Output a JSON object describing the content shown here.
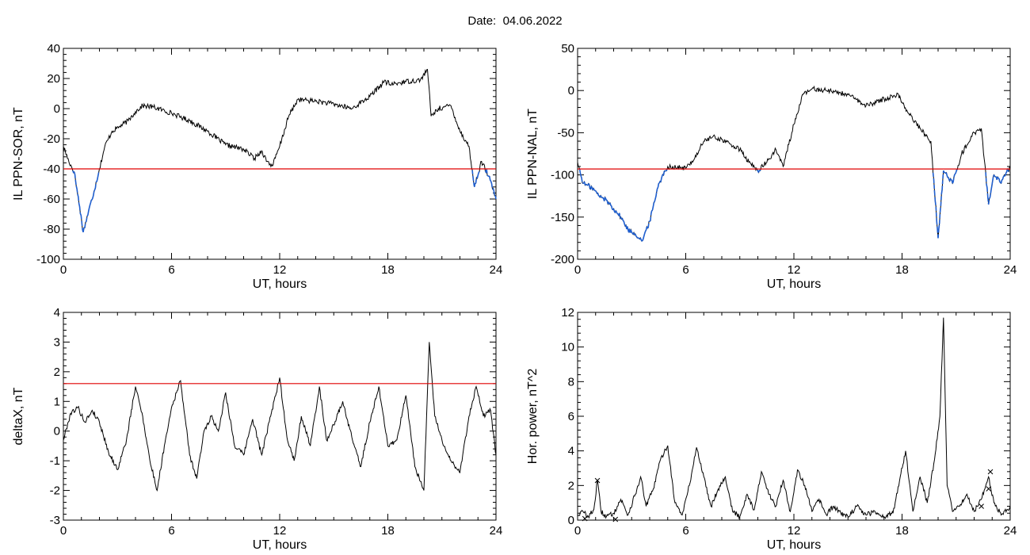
{
  "header": {
    "date_label": "Date:",
    "date_value": "04.06.2022"
  },
  "colors": {
    "threshold": "#e00000",
    "trace": "#000000",
    "highlight": "#1f5fd0",
    "marker_blue": "#2a6ad8",
    "marker_red": "#d02020",
    "marker_green": "#10a010"
  },
  "chart_data": [
    {
      "type": "line",
      "xlabel": "UT, hours",
      "ylabel": "IL PPN-SOR, nT",
      "xlim": [
        0,
        24
      ],
      "ylim": [
        -100,
        40
      ],
      "xticks": [
        0,
        6,
        12,
        18,
        24
      ],
      "yticks": [
        -100,
        -80,
        -60,
        -40,
        -20,
        0,
        20,
        40
      ],
      "threshold": -40,
      "series": [
        {
          "x": [
            0,
            0.3,
            0.6,
            0.9,
            1.1,
            1.4,
            1.7,
            2.0,
            2.3,
            2.7,
            3.1,
            3.6,
            4.0,
            4.4,
            5.0,
            6.0,
            7.0,
            8.0,
            9.0,
            10.0,
            10.6,
            11.0,
            11.3,
            11.6,
            12.0,
            12.5,
            13.0,
            14.0,
            15.0,
            16.0,
            17.0,
            17.8,
            18.2,
            19.0,
            19.8,
            20.2,
            20.4,
            20.8,
            21.5,
            22.0,
            22.5,
            22.8,
            23.2,
            23.6,
            24.0
          ],
          "y": [
            -25,
            -35,
            -42,
            -65,
            -82,
            -68,
            -55,
            -40,
            -25,
            -15,
            -12,
            -8,
            -2,
            2,
            1,
            -3,
            -8,
            -15,
            -24,
            -27,
            -33,
            -28,
            -35,
            -38,
            -25,
            -5,
            6,
            5,
            3,
            0,
            8,
            18,
            16,
            18,
            19,
            26,
            -5,
            0,
            2,
            -15,
            -25,
            -52,
            -35,
            -45,
            -60
          ]
        }
      ]
    },
    {
      "type": "line",
      "xlabel": "UT, hours",
      "ylabel": "IL PPN-NAL, nT",
      "xlim": [
        0,
        24
      ],
      "ylim": [
        -200,
        50
      ],
      "xticks": [
        0,
        6,
        12,
        18,
        24
      ],
      "yticks": [
        -200,
        -150,
        -100,
        -50,
        0,
        50
      ],
      "threshold": -93,
      "series": [
        {
          "x": [
            0,
            0.3,
            0.8,
            1.2,
            1.6,
            2.0,
            2.4,
            2.8,
            3.2,
            3.6,
            4.0,
            4.5,
            5.0,
            6.0,
            6.5,
            7.0,
            7.5,
            8.0,
            9.0,
            9.5,
            10.0,
            10.5,
            11.0,
            11.4,
            12.0,
            12.5,
            13.0,
            14.0,
            15.0,
            16.0,
            17.0,
            17.8,
            18.3,
            19.0,
            19.6,
            20.0,
            20.3,
            20.8,
            21.3,
            22.0,
            22.4,
            22.8,
            23.1,
            23.5,
            24.0
          ],
          "y": [
            -85,
            -110,
            -115,
            -125,
            -130,
            -140,
            -150,
            -165,
            -170,
            -178,
            -155,
            -110,
            -90,
            -92,
            -80,
            -60,
            -55,
            -58,
            -70,
            -85,
            -95,
            -85,
            -70,
            -90,
            -40,
            -5,
            2,
            0,
            -5,
            -18,
            -10,
            -5,
            -25,
            -45,
            -60,
            -175,
            -95,
            -110,
            -75,
            -50,
            -45,
            -135,
            -100,
            -110,
            -90
          ]
        }
      ]
    },
    {
      "type": "line",
      "xlabel": "UT, hours",
      "ylabel": "deltaX, nT",
      "xlim": [
        0,
        24
      ],
      "ylim": [
        -3,
        4
      ],
      "xticks": [
        0,
        6,
        12,
        18,
        24
      ],
      "yticks": [
        -3,
        -2,
        -1,
        0,
        1,
        2,
        3,
        4
      ],
      "threshold": 1.6,
      "series": [
        {
          "x": [
            0,
            0.4,
            0.8,
            1.2,
            1.6,
            2.0,
            2.5,
            3.0,
            3.5,
            4.0,
            4.4,
            4.8,
            5.2,
            5.6,
            6.0,
            6.5,
            7.0,
            7.4,
            7.8,
            8.2,
            8.6,
            9.0,
            9.5,
            10.0,
            10.5,
            11.0,
            11.5,
            12.0,
            12.4,
            12.8,
            13.2,
            13.7,
            14.2,
            14.6,
            15.0,
            15.5,
            16.0,
            16.5,
            17.0,
            17.5,
            18.0,
            18.5,
            19.0,
            19.5,
            20.0,
            20.3,
            20.6,
            21.0,
            21.5,
            22.0,
            22.5,
            22.9,
            23.3,
            23.7,
            24.0
          ],
          "y": [
            -0.3,
            0.6,
            0.8,
            0.3,
            0.7,
            0.3,
            -0.7,
            -1.3,
            -0.3,
            1.5,
            0.5,
            -1.0,
            -2.0,
            -0.5,
            0.8,
            1.7,
            -0.8,
            -1.6,
            0.0,
            0.5,
            0.0,
            1.3,
            -0.5,
            -0.8,
            0.4,
            -0.8,
            0.5,
            1.8,
            -0.2,
            -1.0,
            0.5,
            -0.5,
            1.5,
            -0.3,
            0.2,
            1.0,
            -0.2,
            -1.2,
            0.3,
            1.5,
            -0.5,
            -0.3,
            1.2,
            -1.2,
            -2.0,
            3.0,
            0.5,
            -0.3,
            -1.0,
            -1.4,
            0.5,
            1.5,
            0.5,
            0.7,
            -0.8
          ]
        }
      ]
    },
    {
      "type": "line",
      "xlabel": "UT, hours",
      "ylabel": "Hor. power, nT^2",
      "xlim": [
        0,
        24
      ],
      "ylim": [
        0,
        12
      ],
      "xticks": [
        0,
        6,
        12,
        18,
        24
      ],
      "yticks": [
        0,
        2,
        4,
        6,
        8,
        10,
        12
      ],
      "series": [
        {
          "x": [
            0,
            0.3,
            0.6,
            0.9,
            1.1,
            1.3,
            1.6,
            2.0,
            2.4,
            2.8,
            3.2,
            3.5,
            3.8,
            4.2,
            4.6,
            5.0,
            5.4,
            5.8,
            6.2,
            6.6,
            7.0,
            7.4,
            7.8,
            8.2,
            8.6,
            9.0,
            9.4,
            9.8,
            10.2,
            10.6,
            11.0,
            11.4,
            11.8,
            12.2,
            12.6,
            13.0,
            13.4,
            13.8,
            14.2,
            14.6,
            15.0,
            15.5,
            16.0,
            16.5,
            17.0,
            17.5,
            17.9,
            18.2,
            18.6,
            19.0,
            19.4,
            19.8,
            20.1,
            20.3,
            20.5,
            20.8,
            21.2,
            21.6,
            22.0,
            22.4,
            22.8,
            23.1,
            23.5,
            24.0
          ],
          "y": [
            0.3,
            0.5,
            0.2,
            0.6,
            2.3,
            0.5,
            0.2,
            0.4,
            1.2,
            0.3,
            1.5,
            2.5,
            0.8,
            1.8,
            3.5,
            4.3,
            1.0,
            0.3,
            2.0,
            4.2,
            2.5,
            0.8,
            1.8,
            2.5,
            0.5,
            0.2,
            1.5,
            0.6,
            2.8,
            1.5,
            0.8,
            2.3,
            0.5,
            2.9,
            2.0,
            0.5,
            1.2,
            0.3,
            0.8,
            0.4,
            0.2,
            0.8,
            0.3,
            0.5,
            0.2,
            0.4,
            2.5,
            4.0,
            0.5,
            2.5,
            1.0,
            3.5,
            6.0,
            11.7,
            2.0,
            0.5,
            0.8,
            1.5,
            0.5,
            1.2,
            2.5,
            1.0,
            0.3,
            0.8
          ]
        }
      ],
      "markers": [
        {
          "x": 1.1,
          "y": 2.3,
          "symbol": "×",
          "color": "#2a6ad8"
        },
        {
          "x": 22.9,
          "y": 2.8,
          "symbol": "×",
          "color": "#2a6ad8"
        },
        {
          "x": 0.4,
          "y": 0.1,
          "symbol": "×",
          "color": "#d02020"
        },
        {
          "x": 22.4,
          "y": 0.8,
          "symbol": "×",
          "color": "#d02020"
        },
        {
          "x": 2.1,
          "y": 0.05,
          "symbol": "×",
          "color": "#10a010"
        },
        {
          "x": 22.8,
          "y": 1.8,
          "symbol": "×",
          "color": "#10a010"
        }
      ]
    }
  ]
}
